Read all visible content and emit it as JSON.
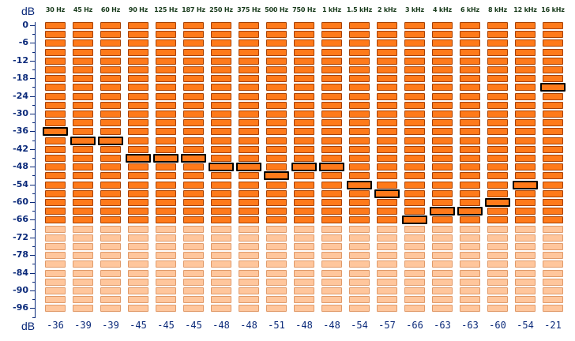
{
  "analyzer": {
    "unit_top": "dB",
    "unit_bottom": "dB",
    "scale_labels": [
      "0",
      "-6",
      "-12",
      "-18",
      "-24",
      "-30",
      "-36",
      "-42",
      "-48",
      "-54",
      "-60",
      "-66",
      "-72",
      "-78",
      "-84",
      "-90",
      "-96"
    ],
    "bands": [
      {
        "label": "30 Hz",
        "value": "-36"
      },
      {
        "label": "45 Hz",
        "value": "-39"
      },
      {
        "label": "60 Hz",
        "value": "-39"
      },
      {
        "label": "90 Hz",
        "value": "-45"
      },
      {
        "label": "125 Hz",
        "value": "-45"
      },
      {
        "label": "187 Hz",
        "value": "-45"
      },
      {
        "label": "250 Hz",
        "value": "-48"
      },
      {
        "label": "375 Hz",
        "value": "-48"
      },
      {
        "label": "500 Hz",
        "value": "-51"
      },
      {
        "label": "750 Hz",
        "value": "-48"
      },
      {
        "label": "1 kHz",
        "value": "-48"
      },
      {
        "label": "1.5 kHz",
        "value": "-54"
      },
      {
        "label": "2 kHz",
        "value": "-57"
      },
      {
        "label": "3 kHz",
        "value": "-66"
      },
      {
        "label": "4 kHz",
        "value": "-63"
      },
      {
        "label": "6 kHz",
        "value": "-63"
      },
      {
        "label": "8 kHz",
        "value": "-60"
      },
      {
        "label": "12 kHz",
        "value": "-54"
      },
      {
        "label": "16 kHz",
        "value": "-21"
      }
    ],
    "colors": {
      "active": "#ff7a1a",
      "active_border": "#a84000",
      "inactive": "#ffc69c",
      "inactive_border": "#e09a6a",
      "axis": "#0b2a7a"
    }
  }
}
